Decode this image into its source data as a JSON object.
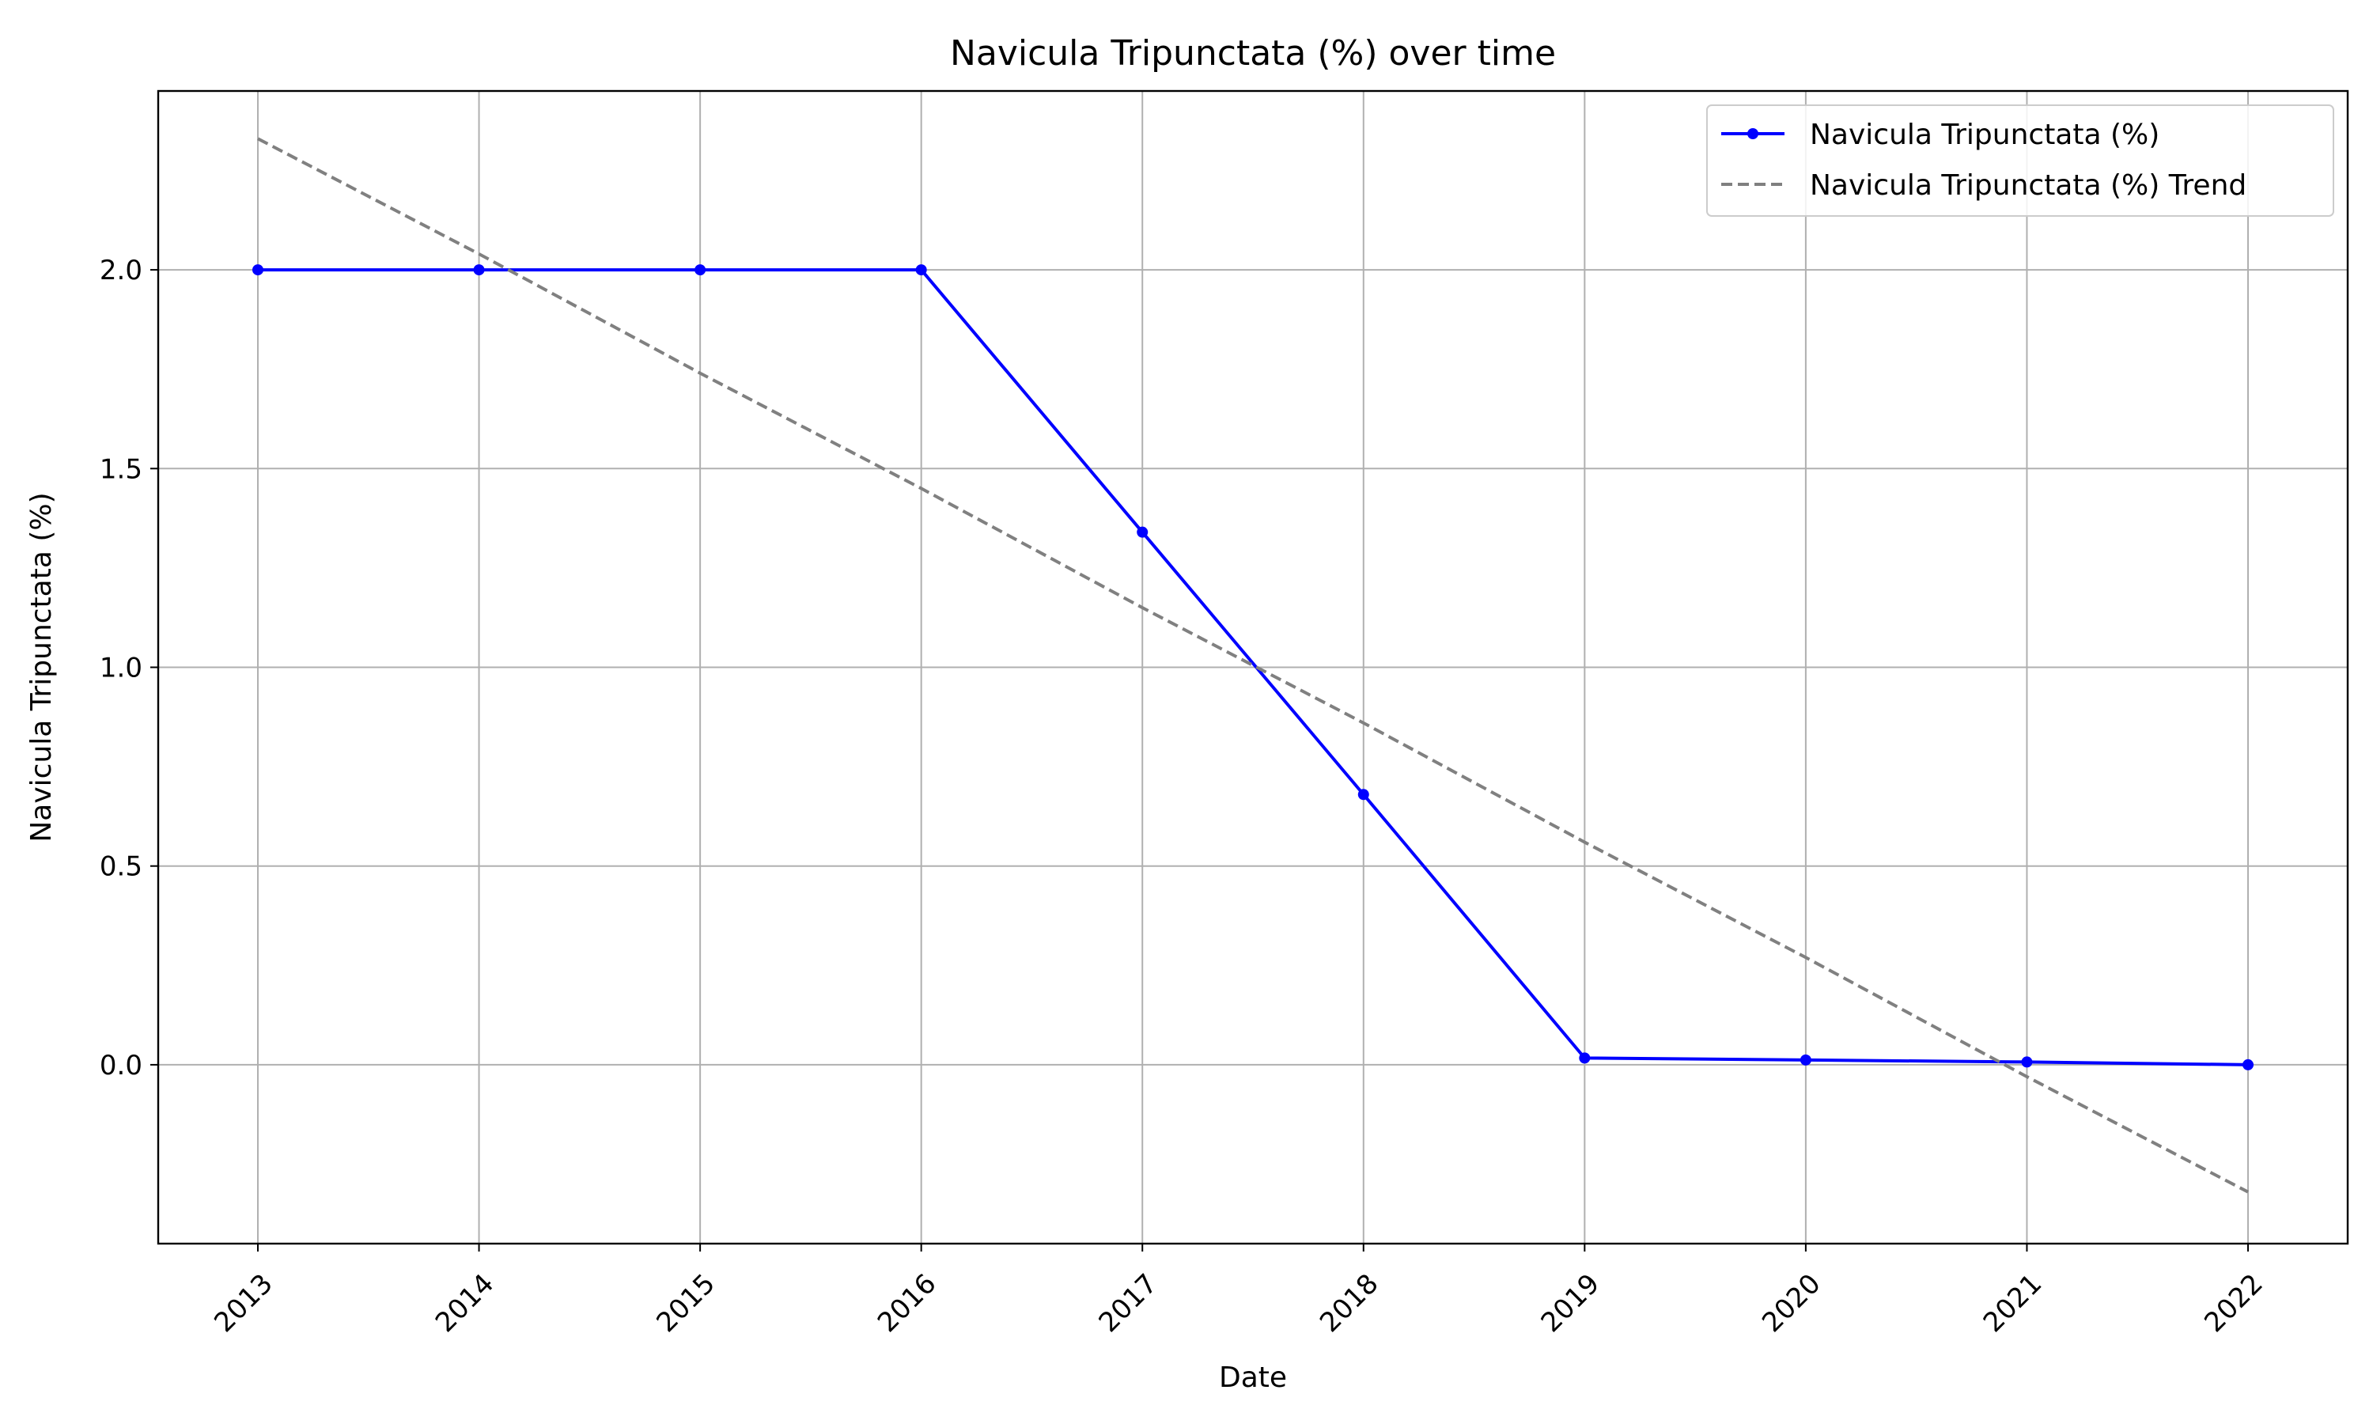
{
  "chart_data": {
    "type": "line",
    "title": "Navicula Tripunctata (%) over time",
    "xlabel": "Date",
    "ylabel": "Navicula Tripunctata (%)",
    "x": [
      "2013",
      "2014",
      "2015",
      "2016",
      "2017",
      "2018",
      "2019",
      "2020",
      "2021",
      "2022"
    ],
    "series": [
      {
        "name": "Navicula Tripunctata (%)",
        "values": [
          2.0,
          2.0,
          2.0,
          2.0,
          1.34,
          0.68,
          0.017,
          0.012,
          0.007,
          0.0
        ],
        "color": "#0000ff",
        "style": "solid",
        "marker": "circle"
      },
      {
        "name": "Navicula Tripunctata (%) Trend",
        "values": [
          2.33,
          2.04,
          1.74,
          1.45,
          1.15,
          0.86,
          0.56,
          0.27,
          -0.03,
          -0.32
        ],
        "color": "#808080",
        "style": "dashed",
        "marker": "none"
      }
    ],
    "ylim": [
      -0.45,
      2.45
    ],
    "yticks": [
      0.0,
      0.5,
      1.0,
      1.5,
      2.0
    ],
    "ytick_labels": [
      "0.0",
      "0.5",
      "1.0",
      "1.5",
      "2.0"
    ],
    "grid": true,
    "legend_position": "top-right"
  }
}
